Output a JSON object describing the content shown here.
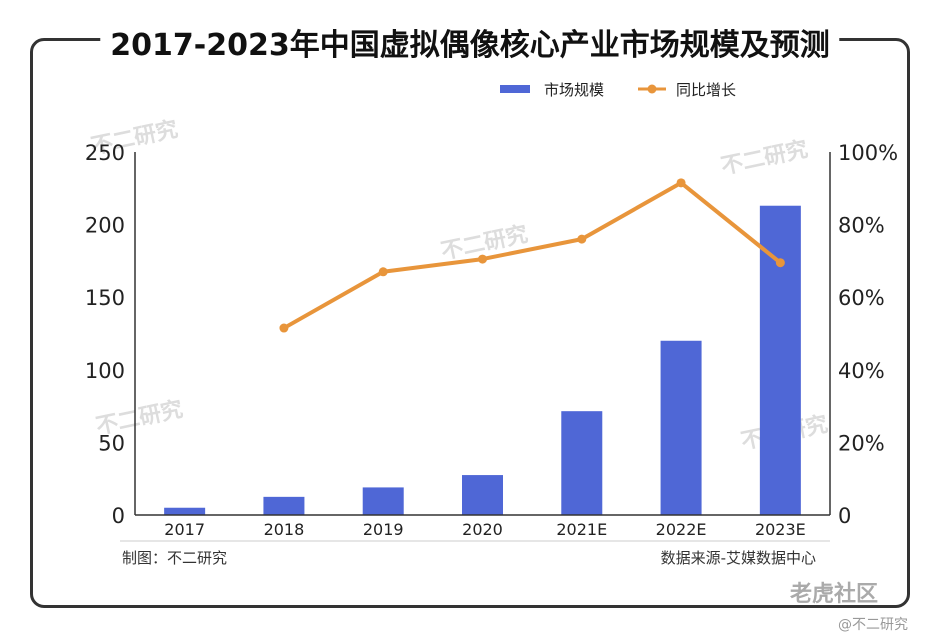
{
  "chart_data": {
    "type": "bar",
    "title": "2017-2023年中国虚拟偶像核心产业市场规模及预测",
    "categories": [
      "2017",
      "2018",
      "2019",
      "2020",
      "2021E",
      "2022E",
      "2023E"
    ],
    "series": [
      {
        "name": "市场规模",
        "type": "bar",
        "axis": "left",
        "values": [
          5,
          12.5,
          19,
          27.5,
          71.5,
          120,
          213
        ]
      },
      {
        "name": "同比增长",
        "type": "line",
        "axis": "right",
        "values": [
          null,
          51.5,
          67,
          70.5,
          76,
          91.5,
          69.5
        ]
      }
    ],
    "y_left": {
      "range": [
        0,
        250
      ],
      "ticks": [
        "0",
        "50",
        "100",
        "150",
        "200",
        "250"
      ]
    },
    "y_right": {
      "range": [
        0,
        100
      ],
      "ticks": [
        "0",
        "20%",
        "40%",
        "60%",
        "80%",
        "100%"
      ]
    },
    "legend": "top-right",
    "colors": {
      "bar": "#4f67d6",
      "line": "#e8953b"
    }
  },
  "footer": {
    "maker": "制图：不二研究",
    "source": "数据来源-艾媒数据中心"
  },
  "watermark": {
    "brand": "老虎社区",
    "handle": "@不二研究",
    "faint": "不二研究"
  }
}
